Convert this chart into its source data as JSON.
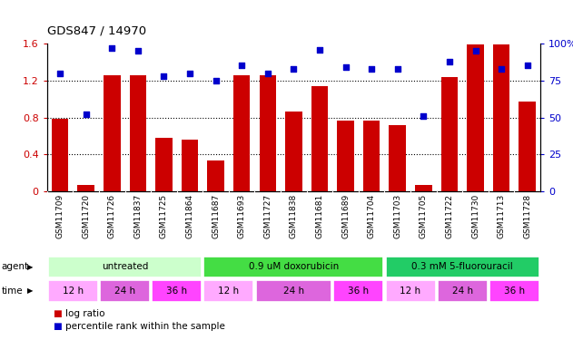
{
  "title": "GDS847 / 14970",
  "samples": [
    "GSM11709",
    "GSM11720",
    "GSM11726",
    "GSM11837",
    "GSM11725",
    "GSM11864",
    "GSM11687",
    "GSM11693",
    "GSM11727",
    "GSM11838",
    "GSM11681",
    "GSM11689",
    "GSM11704",
    "GSM11703",
    "GSM11705",
    "GSM11722",
    "GSM11730",
    "GSM11713",
    "GSM11728"
  ],
  "log_ratio": [
    0.79,
    0.07,
    1.26,
    1.26,
    0.58,
    0.56,
    0.33,
    1.26,
    1.26,
    0.86,
    1.14,
    0.77,
    0.77,
    0.72,
    0.07,
    1.24,
    1.59,
    1.59,
    0.97
  ],
  "percentile": [
    80,
    52,
    97,
    95,
    78,
    80,
    75,
    85,
    80,
    83,
    96,
    84,
    83,
    83,
    51,
    88,
    95,
    83,
    85
  ],
  "bar_color": "#cc0000",
  "dot_color": "#0000cc",
  "ylim_left": [
    0,
    1.6
  ],
  "ylim_right": [
    0,
    100
  ],
  "yticks_left": [
    0,
    0.4,
    0.8,
    1.2,
    1.6
  ],
  "ytick_labels_left": [
    "0",
    "0.4",
    "0.8",
    "1.2",
    "1.6"
  ],
  "yticks_right": [
    0,
    25,
    50,
    75,
    100
  ],
  "ytick_labels_right": [
    "0",
    "25",
    "50",
    "75",
    "100%"
  ],
  "agents": [
    {
      "label": "untreated",
      "start": 0,
      "end": 6,
      "color": "#ccffcc"
    },
    {
      "label": "0.9 uM doxorubicin",
      "start": 6,
      "end": 13,
      "color": "#44dd44"
    },
    {
      "label": "0.3 mM 5-fluorouracil",
      "start": 13,
      "end": 19,
      "color": "#22cc66"
    }
  ],
  "times": [
    {
      "label": "12 h",
      "start": 0,
      "end": 2,
      "color": "#ffaaff"
    },
    {
      "label": "24 h",
      "start": 2,
      "end": 4,
      "color": "#dd66dd"
    },
    {
      "label": "36 h",
      "start": 4,
      "end": 6,
      "color": "#ff44ff"
    },
    {
      "label": "12 h",
      "start": 6,
      "end": 8,
      "color": "#ffaaff"
    },
    {
      "label": "24 h",
      "start": 8,
      "end": 11,
      "color": "#dd66dd"
    },
    {
      "label": "36 h",
      "start": 11,
      "end": 13,
      "color": "#ff44ff"
    },
    {
      "label": "12 h",
      "start": 13,
      "end": 15,
      "color": "#ffaaff"
    },
    {
      "label": "24 h",
      "start": 15,
      "end": 17,
      "color": "#dd66dd"
    },
    {
      "label": "36 h",
      "start": 17,
      "end": 19,
      "color": "#ff44ff"
    }
  ],
  "agent_label": "agent",
  "time_label": "time",
  "legend_log_ratio": "log ratio",
  "legend_percentile": "percentile rank within the sample",
  "xticklabel_bg": "#cccccc",
  "plot_bg_color": "#ffffff",
  "fig_bg_color": "#ffffff"
}
